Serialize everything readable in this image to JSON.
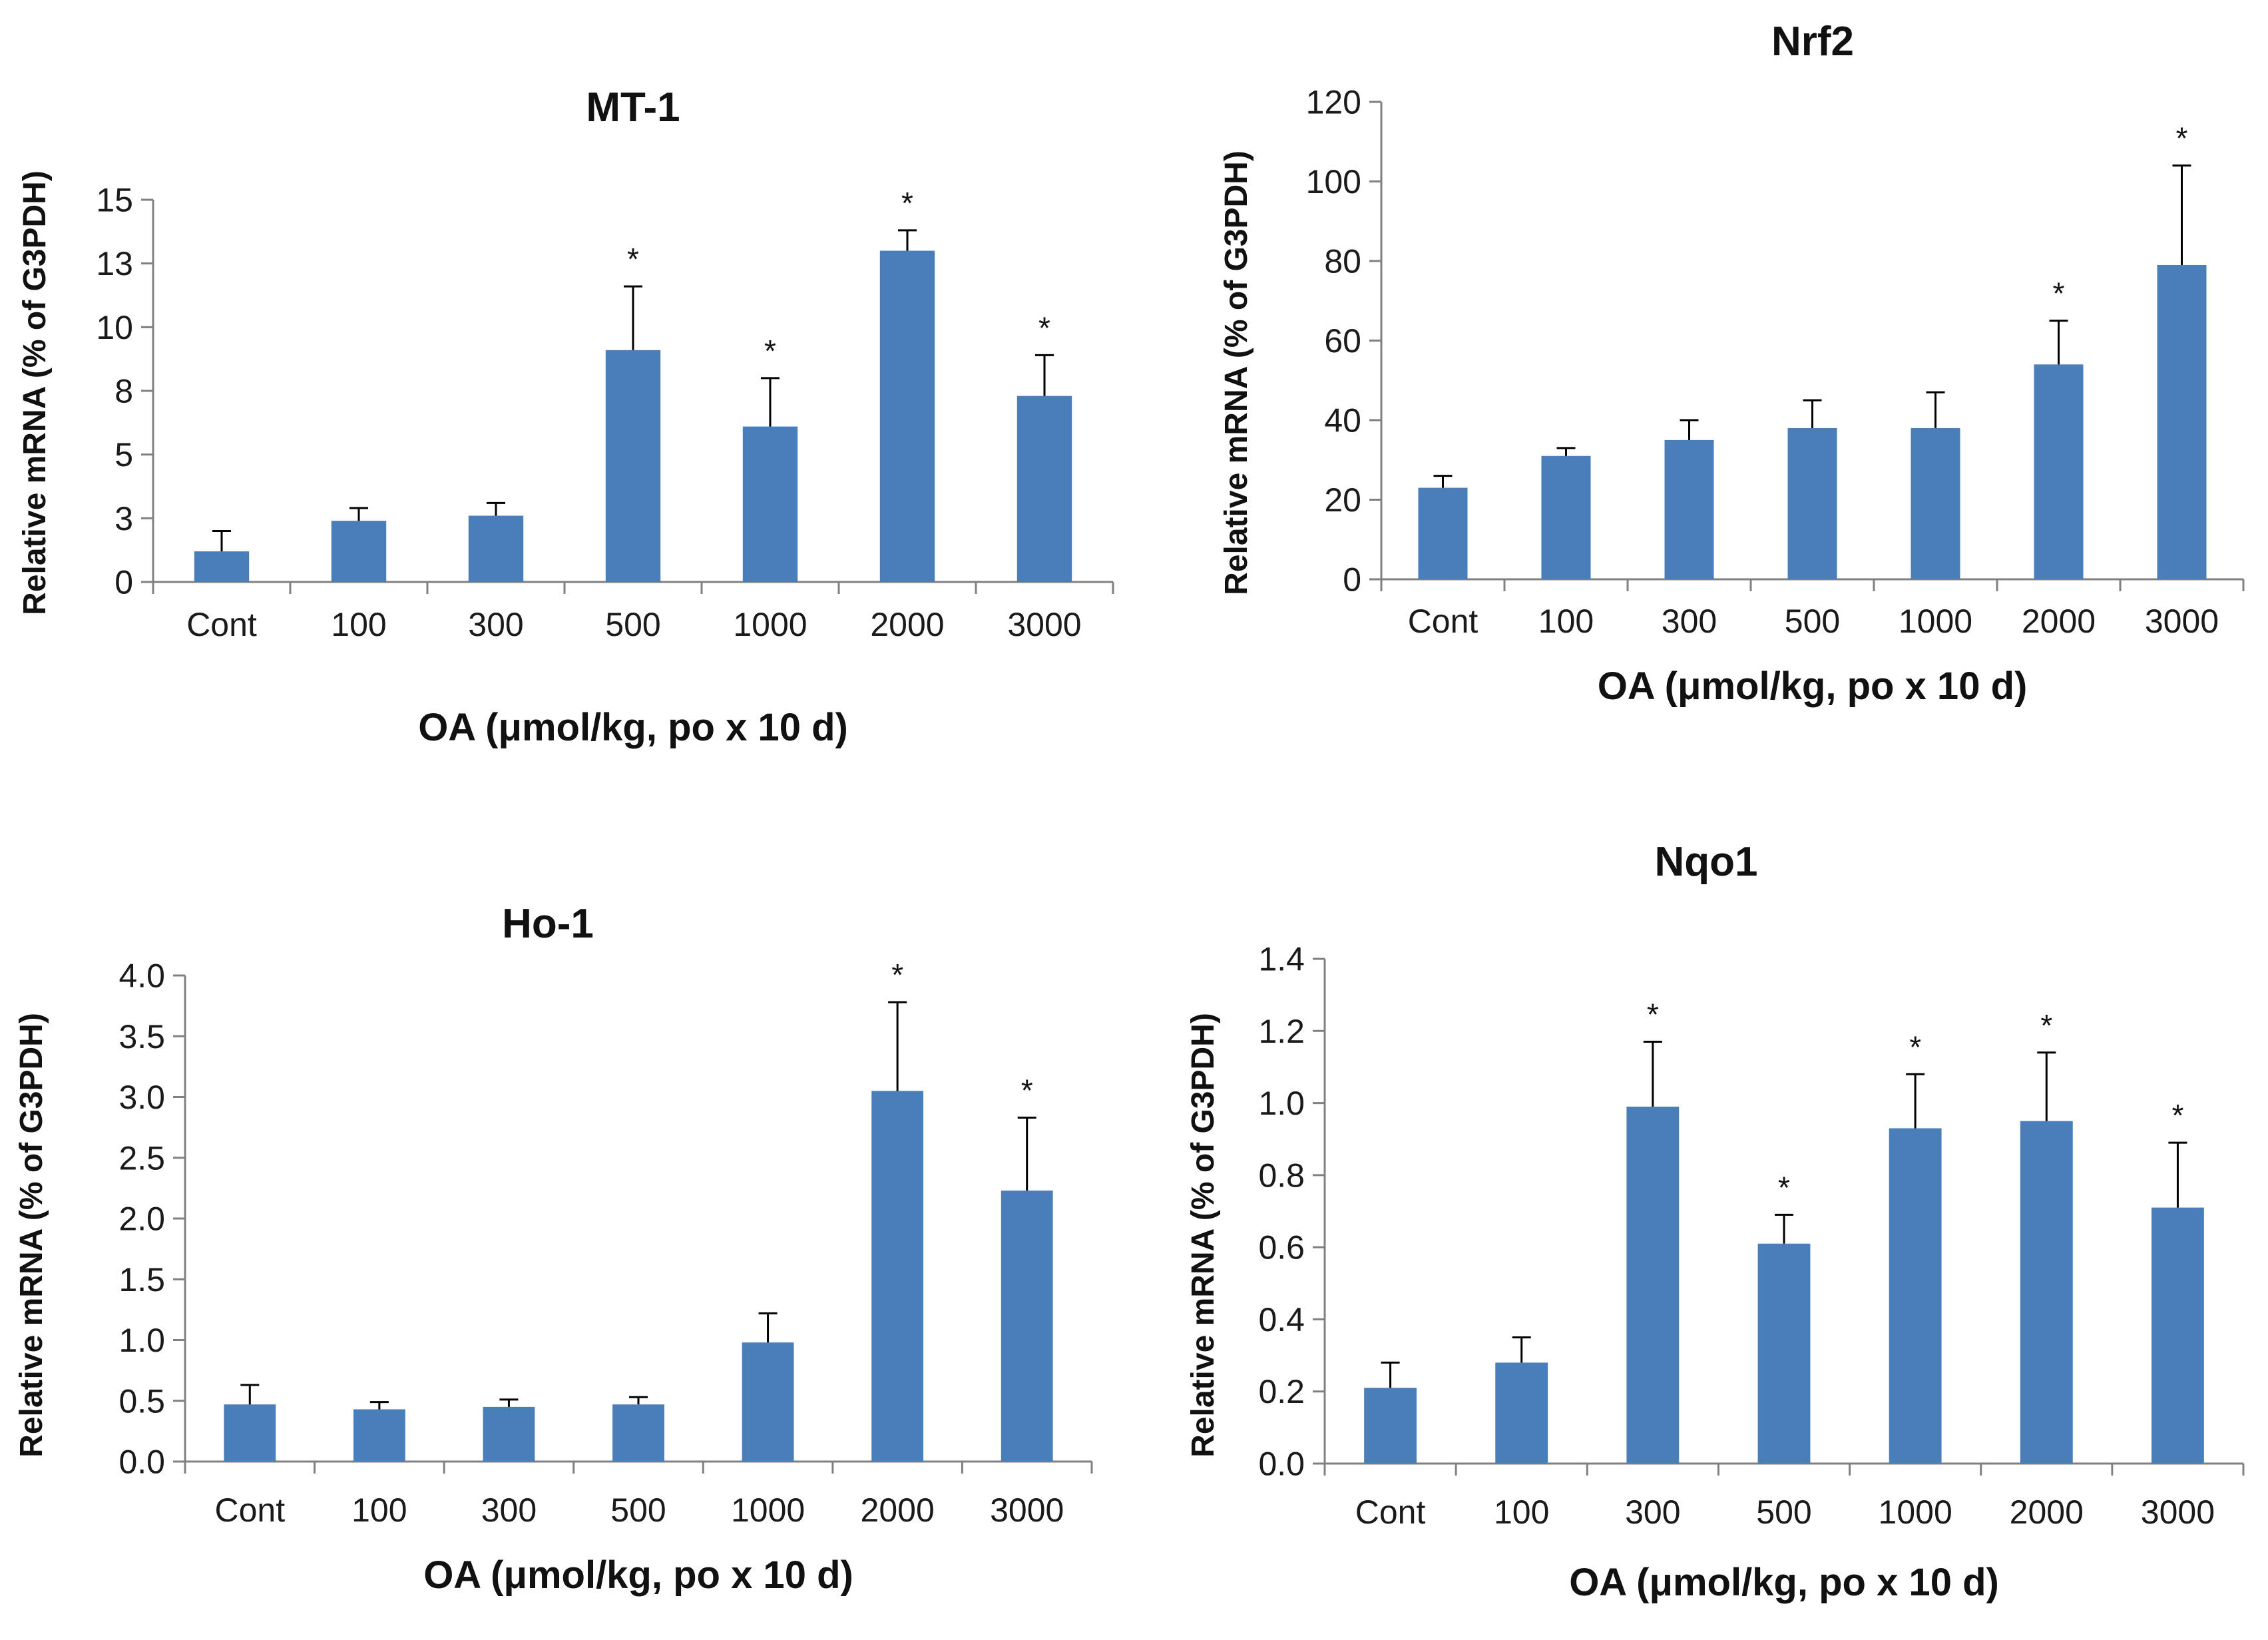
{
  "chart_data": [
    {
      "type": "bar",
      "title": "MT-1",
      "categories": [
        "Cont",
        "100",
        "300",
        "500",
        "1000",
        "2000",
        "3000"
      ],
      "values": [
        1.2,
        2.4,
        2.6,
        9.1,
        6.1,
        13.0,
        7.3
      ],
      "errors": [
        0.8,
        0.5,
        0.5,
        2.5,
        1.9,
        0.8,
        1.6
      ],
      "significant": [
        false,
        false,
        false,
        true,
        true,
        true,
        true
      ],
      "ylim": [
        0,
        15
      ],
      "yticks": [
        0,
        2.5,
        5,
        7.5,
        10,
        12.5,
        15
      ],
      "ytick_labels": [
        "0",
        "3",
        "5",
        "8",
        "10",
        "13",
        "15"
      ],
      "xlabel": "OA (μmol/kg, po x 10 d)",
      "ylabel": "Relative mRNA (% of G3PDH)",
      "bar_color": "#4a7ebb",
      "star_label": "*"
    },
    {
      "type": "bar",
      "title": "Nrf2",
      "categories": [
        "Cont",
        "100",
        "300",
        "500",
        "1000",
        "2000",
        "3000"
      ],
      "values": [
        23,
        31,
        35,
        38,
        38,
        54,
        79
      ],
      "errors": [
        3,
        2,
        5,
        7,
        9,
        11,
        25
      ],
      "significant": [
        false,
        false,
        false,
        false,
        false,
        true,
        true
      ],
      "ylim": [
        0,
        120
      ],
      "yticks": [
        0,
        20,
        40,
        60,
        80,
        100,
        120
      ],
      "ytick_labels": [
        "0",
        "20",
        "40",
        "60",
        "80",
        "100",
        "120"
      ],
      "xlabel": "OA (μmol/kg, po x 10 d)",
      "ylabel": "Relative mRNA (% of G3PDH)",
      "bar_color": "#4a7ebb",
      "star_label": "*"
    },
    {
      "type": "bar",
      "title": "Ho-1",
      "categories": [
        "Cont",
        "100",
        "300",
        "500",
        "1000",
        "2000",
        "3000"
      ],
      "values": [
        0.47,
        0.43,
        0.45,
        0.47,
        0.98,
        3.05,
        2.23
      ],
      "errors": [
        0.16,
        0.06,
        0.06,
        0.06,
        0.24,
        0.73,
        0.6
      ],
      "significant": [
        false,
        false,
        false,
        false,
        false,
        true,
        true
      ],
      "ylim": [
        0,
        4
      ],
      "yticks": [
        0,
        0.5,
        1,
        1.5,
        2,
        2.5,
        3,
        3.5,
        4
      ],
      "ytick_labels": [
        "0.0",
        "0.5",
        "1.0",
        "1.5",
        "2.0",
        "2.5",
        "3.0",
        "3.5",
        "4.0"
      ],
      "xlabel": "OA (μmol/kg, po x 10 d)",
      "ylabel": "Relative mRNA (% of G3PDH)",
      "bar_color": "#4a7ebb",
      "star_label": "*"
    },
    {
      "type": "bar",
      "title": "Nqo1",
      "categories": [
        "Cont",
        "100",
        "300",
        "500",
        "1000",
        "2000",
        "3000"
      ],
      "values": [
        0.21,
        0.28,
        0.99,
        0.61,
        0.93,
        0.95,
        0.71
      ],
      "errors": [
        0.07,
        0.07,
        0.18,
        0.08,
        0.15,
        0.19,
        0.18
      ],
      "significant": [
        false,
        false,
        true,
        true,
        true,
        true,
        true
      ],
      "ylim": [
        0,
        1.4
      ],
      "yticks": [
        0,
        0.2,
        0.4,
        0.6,
        0.8,
        1,
        1.2,
        1.4
      ],
      "ytick_labels": [
        "0.0",
        "0.2",
        "0.4",
        "0.6",
        "0.8",
        "1.0",
        "1.2",
        "1.4"
      ],
      "xlabel": "OA (μmol/kg, po x 10 d)",
      "ylabel": "Relative mRNA (% of G3PDH)",
      "bar_color": "#4a7ebb",
      "star_label": "*"
    }
  ]
}
